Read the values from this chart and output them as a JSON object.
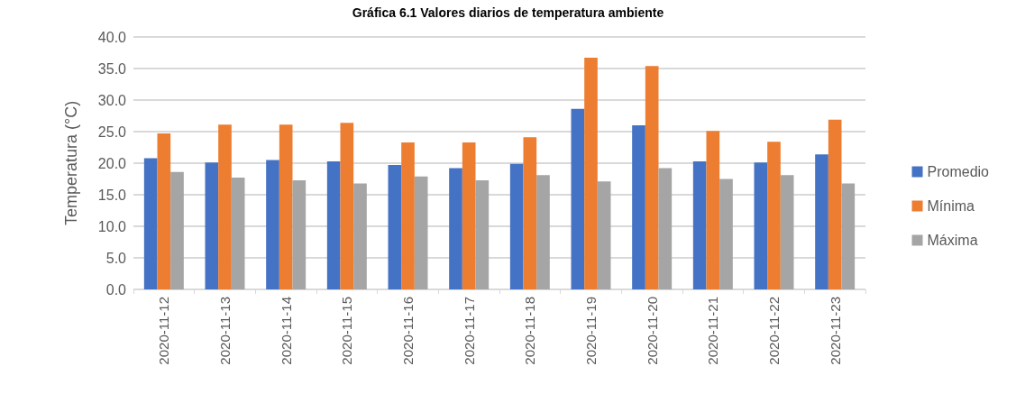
{
  "chart_data": {
    "type": "bar",
    "title": "Gráfica 6.1 Valores diarios de temperatura ambiente",
    "ylabel": "Temperatura (°C)",
    "categories": [
      "2020-11-12",
      "2020-11-13",
      "2020-11-14",
      "2020-11-15",
      "2020-11-16",
      "2020-11-17",
      "2020-11-18",
      "2020-11-19",
      "2020-11-20",
      "2020-11-21",
      "2020-11-22",
      "2020-11-23"
    ],
    "series": [
      {
        "name": "Promedio",
        "color": "#4472c4",
        "values": [
          20.8,
          20.1,
          20.5,
          20.3,
          19.7,
          19.2,
          19.9,
          28.6,
          26.0,
          20.3,
          20.1,
          21.4
        ]
      },
      {
        "name": "Mínima",
        "color": "#ed7d31",
        "values": [
          24.7,
          26.1,
          26.1,
          26.4,
          23.3,
          23.3,
          24.1,
          36.7,
          35.4,
          25.1,
          23.4,
          26.9
        ]
      },
      {
        "name": "Máxima",
        "color": "#a5a5a5",
        "values": [
          18.6,
          17.7,
          17.3,
          16.8,
          17.9,
          17.3,
          18.1,
          17.1,
          19.2,
          17.5,
          18.1,
          16.8
        ]
      }
    ],
    "ylim": [
      0,
      40
    ],
    "yticks": [
      {
        "value": 0,
        "label": "0.0"
      },
      {
        "value": 5,
        "label": "5.0"
      },
      {
        "value": 10,
        "label": "10.0"
      },
      {
        "value": 15,
        "label": "15.0"
      },
      {
        "value": 20,
        "label": "20.0"
      },
      {
        "value": 25,
        "label": "25.0"
      },
      {
        "value": 30,
        "label": "30.0"
      },
      {
        "value": 35,
        "label": "35.0"
      },
      {
        "value": 40,
        "label": "40.0"
      }
    ],
    "grid": "y",
    "legend": "right"
  }
}
